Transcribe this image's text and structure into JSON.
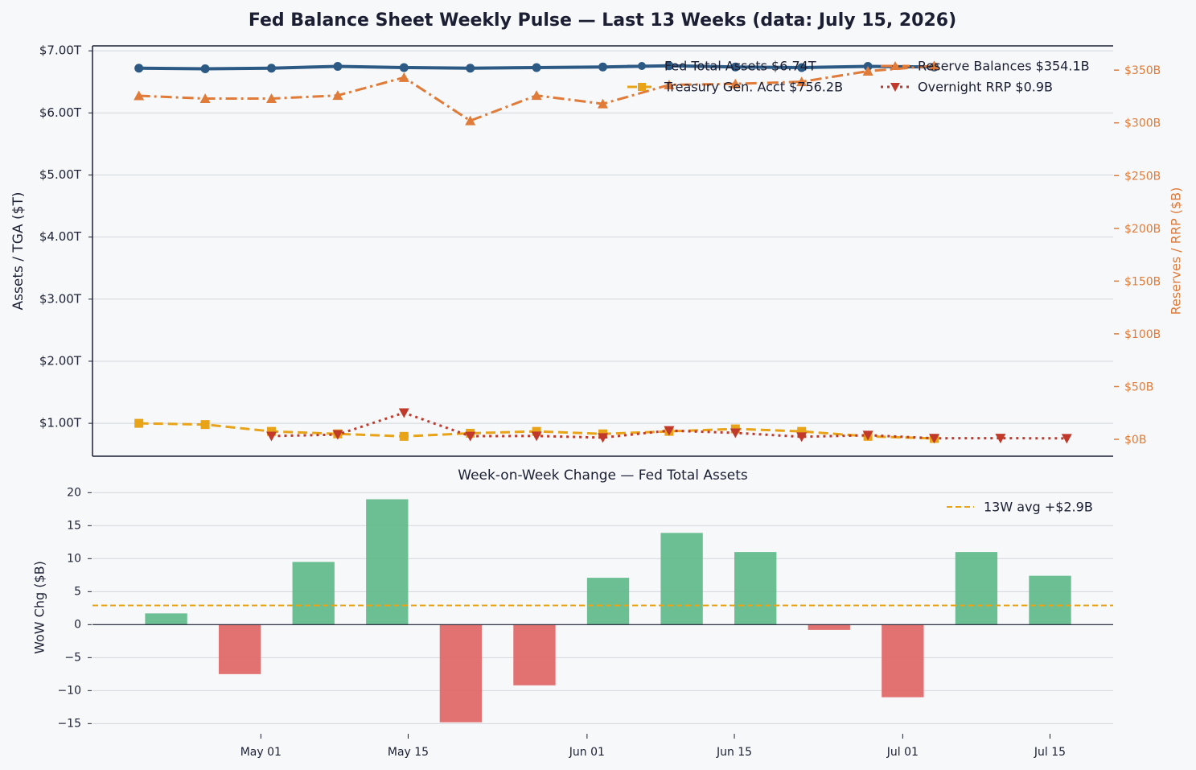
{
  "title": "Fed Balance Sheet Weekly Pulse — Last 13 Weeks  (data: July 15, 2026)",
  "chart_data": [
    {
      "type": "line",
      "categories": [
        null,
        null,
        null,
        null,
        null,
        null,
        null,
        null,
        null,
        null,
        null,
        null,
        null,
        null,
        null
      ],
      "y_label": "Assets / TGA ($T)",
      "y2_label": "Reserves / RRP ($B)",
      "ylim": [
        0.47,
        7.08
      ],
      "yticks": [
        {
          "value": 1,
          "label": "$1.00T"
        },
        {
          "value": 2,
          "label": "$2.00T"
        },
        {
          "value": 3,
          "label": "$3.00T"
        },
        {
          "value": 4,
          "label": "$4.00T"
        },
        {
          "value": 5,
          "label": "$5.00T"
        },
        {
          "value": 6,
          "label": "$6.00T"
        },
        {
          "value": 7,
          "label": "$7.00T"
        }
      ],
      "y2lim": [
        -16,
        373
      ],
      "y2ticks": [
        {
          "value": 0,
          "label": "$0B"
        },
        {
          "value": 50,
          "label": "$50B"
        },
        {
          "value": 100,
          "label": "$100B"
        },
        {
          "value": 150,
          "label": "$150B"
        },
        {
          "value": 200,
          "label": "$200B"
        },
        {
          "value": 250,
          "label": "$250B"
        },
        {
          "value": 300,
          "label": "$300B"
        },
        {
          "value": 350,
          "label": "$350B"
        }
      ],
      "y2_color": "#e07b39",
      "grid": true,
      "legend": "upper right",
      "series": [
        {
          "name": "Fed Total Assets  $6.74T",
          "color": "#2c5a85",
          "marker": "circle",
          "linestyle": "solid",
          "values": [
            6.72,
            6.71,
            6.72,
            6.75,
            6.73,
            6.72,
            6.73,
            6.74,
            6.76,
            6.74,
            6.73,
            6.75,
            6.74,
            null,
            null
          ]
        },
        {
          "name": "Treasury Gen. Acct  $756.2B",
          "color": "#e8a317",
          "marker": "square",
          "linestyle": "dashed",
          "values": [
            1.0,
            0.98,
            0.87,
            0.83,
            0.79,
            0.84,
            0.87,
            0.83,
            0.87,
            0.91,
            0.87,
            0.79,
            0.756,
            null,
            null
          ]
        },
        {
          "name": "Reserve Balances  $354.1B",
          "color": "#e07b39",
          "marker": "triangle-up",
          "linestyle": "dashdot",
          "axis": "y2",
          "values": [
            325.7,
            323,
            323,
            326,
            343,
            302,
            326,
            318,
            336,
            337,
            339,
            349,
            354.1,
            null,
            null
          ]
        },
        {
          "name": "Overnight RRP  $0.9B",
          "color": "#c0392b",
          "marker": "triangle-down",
          "linestyle": "dotted",
          "axis": "y2",
          "values": [
            null,
            null,
            3.1,
            4.5,
            25.2,
            3.0,
            3.2,
            1.6,
            8.3,
            6.1,
            2.4,
            3.9,
            1.0,
            1.1,
            0.9
          ]
        }
      ]
    },
    {
      "type": "bar",
      "title": "Week-on-Week Change — Fed Total Assets",
      "y_label": "WoW Chg ($B)",
      "x": [
        "Apr 22",
        "Apr 29",
        "May 06",
        "May 13",
        "May 20",
        "May 27",
        "Jun 03",
        "Jun 10",
        "Jun 17",
        "Jun 24",
        "Jul 01",
        "Jul 08",
        "Jul 15"
      ],
      "values": [
        1.7,
        -7.5,
        9.5,
        19.0,
        -14.8,
        -9.2,
        7.1,
        13.9,
        11.0,
        -0.8,
        -11.0,
        11.0,
        7.4
      ],
      "positive_color": "#5fb98a",
      "negative_color": "#e06666",
      "xlim": [
        "Apr 15",
        "Jul 21"
      ],
      "xticks": [
        "May 01",
        "May 15",
        "Jun 01",
        "Jun 15",
        "Jul 01",
        "Jul 15"
      ],
      "ylim": [
        -16.3,
        21.5
      ],
      "yticks": [
        {
          "value": -15,
          "label": "−15"
        },
        {
          "value": -10,
          "label": "−10"
        },
        {
          "value": -5,
          "label": "−5"
        },
        0,
        5,
        10,
        15,
        20
      ],
      "grid": true,
      "legend": "upper right",
      "avg_line": {
        "name": "13W avg  +$2.9B",
        "value": 2.9,
        "color": "#e8a317"
      }
    }
  ]
}
